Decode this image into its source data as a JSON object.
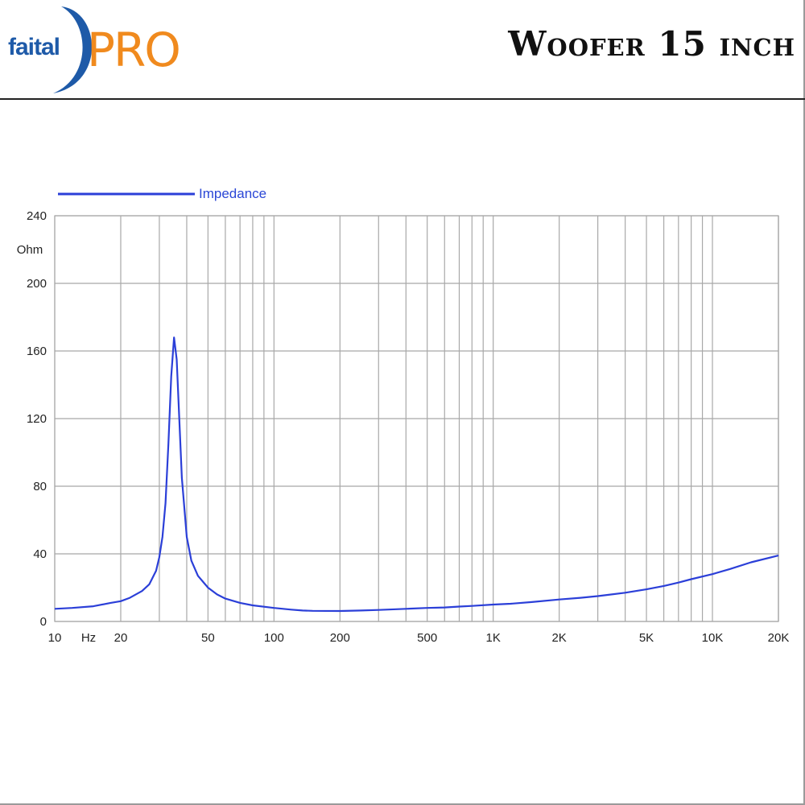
{
  "header": {
    "brand_part1": "faital",
    "brand_part2": "PRO",
    "title": "Woofer 15 inch"
  },
  "colors": {
    "curve": "#2b3fd8",
    "grid": "#a8a8a8",
    "brand_blue": "#1e5aa8",
    "brand_orange": "#f08a1e"
  },
  "chart_data": {
    "type": "line",
    "title": "",
    "xlabel": "Hz",
    "ylabel": "Ohm",
    "x_scale": "log",
    "xlim": [
      10,
      20000
    ],
    "ylim": [
      0,
      240
    ],
    "grid": true,
    "legend_position": "top-left",
    "y_ticks": [
      0,
      40,
      80,
      120,
      160,
      200,
      240
    ],
    "x_tick_labels": [
      {
        "value": 10,
        "label": "10"
      },
      {
        "value": 20,
        "label": "20"
      },
      {
        "value": 50,
        "label": "50"
      },
      {
        "value": 100,
        "label": "100"
      },
      {
        "value": 200,
        "label": "200"
      },
      {
        "value": 500,
        "label": "500"
      },
      {
        "value": 1000,
        "label": "1K"
      },
      {
        "value": 2000,
        "label": "2K"
      },
      {
        "value": 5000,
        "label": "5K"
      },
      {
        "value": 10000,
        "label": "10K"
      },
      {
        "value": 20000,
        "label": "20K"
      }
    ],
    "series": [
      {
        "name": "Impedance",
        "x": [
          10,
          12,
          15,
          18,
          20,
          22,
          25,
          27,
          29,
          30,
          31,
          32,
          33,
          34,
          35,
          36,
          37,
          38,
          40,
          42,
          45,
          50,
          55,
          60,
          70,
          80,
          100,
          120,
          135,
          150,
          200,
          250,
          300,
          400,
          500,
          600,
          700,
          800,
          1000,
          1200,
          1500,
          2000,
          2500,
          3000,
          4000,
          5000,
          6000,
          7000,
          8000,
          10000,
          12000,
          15000,
          20000
        ],
        "y": [
          7.5,
          8,
          9,
          11,
          12,
          14,
          18,
          22,
          30,
          38,
          50,
          70,
          105,
          145,
          168,
          155,
          120,
          85,
          50,
          36,
          27,
          20,
          16,
          13.5,
          11,
          9.5,
          8,
          7,
          6.5,
          6.3,
          6.2,
          6.5,
          6.8,
          7.5,
          8,
          8.3,
          8.8,
          9.2,
          10,
          10.5,
          11.5,
          13,
          14,
          15,
          17,
          19,
          21,
          23,
          25,
          28,
          31,
          35,
          39
        ]
      }
    ]
  }
}
